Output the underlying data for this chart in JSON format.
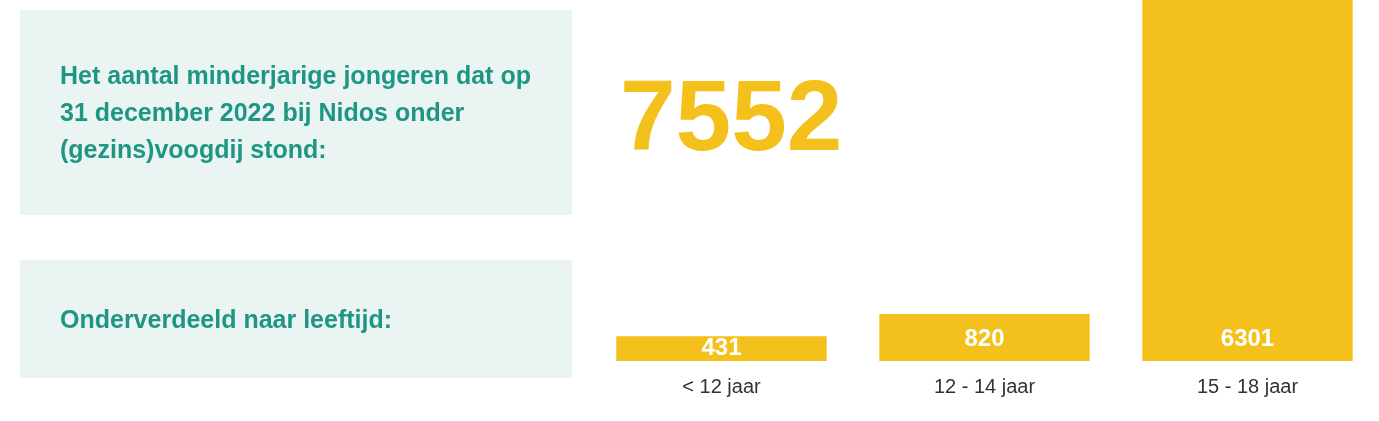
{
  "chart_data": {
    "type": "bar",
    "title": "Het aantal minderjarige jongeren dat op 31 december 2022 bij Nidos onder (gezins)voogdij stond:",
    "subtitle": "Onderverdeeld naar leeftijd:",
    "annotations": [
      "7552"
    ],
    "categories": [
      "< 12 jaar",
      "12 - 14 jaar",
      "15 - 18 jaar"
    ],
    "values": [
      431,
      820,
      6301
    ],
    "color": "#f4c01c",
    "data_labels": true,
    "grid": false,
    "legend": false
  }
}
